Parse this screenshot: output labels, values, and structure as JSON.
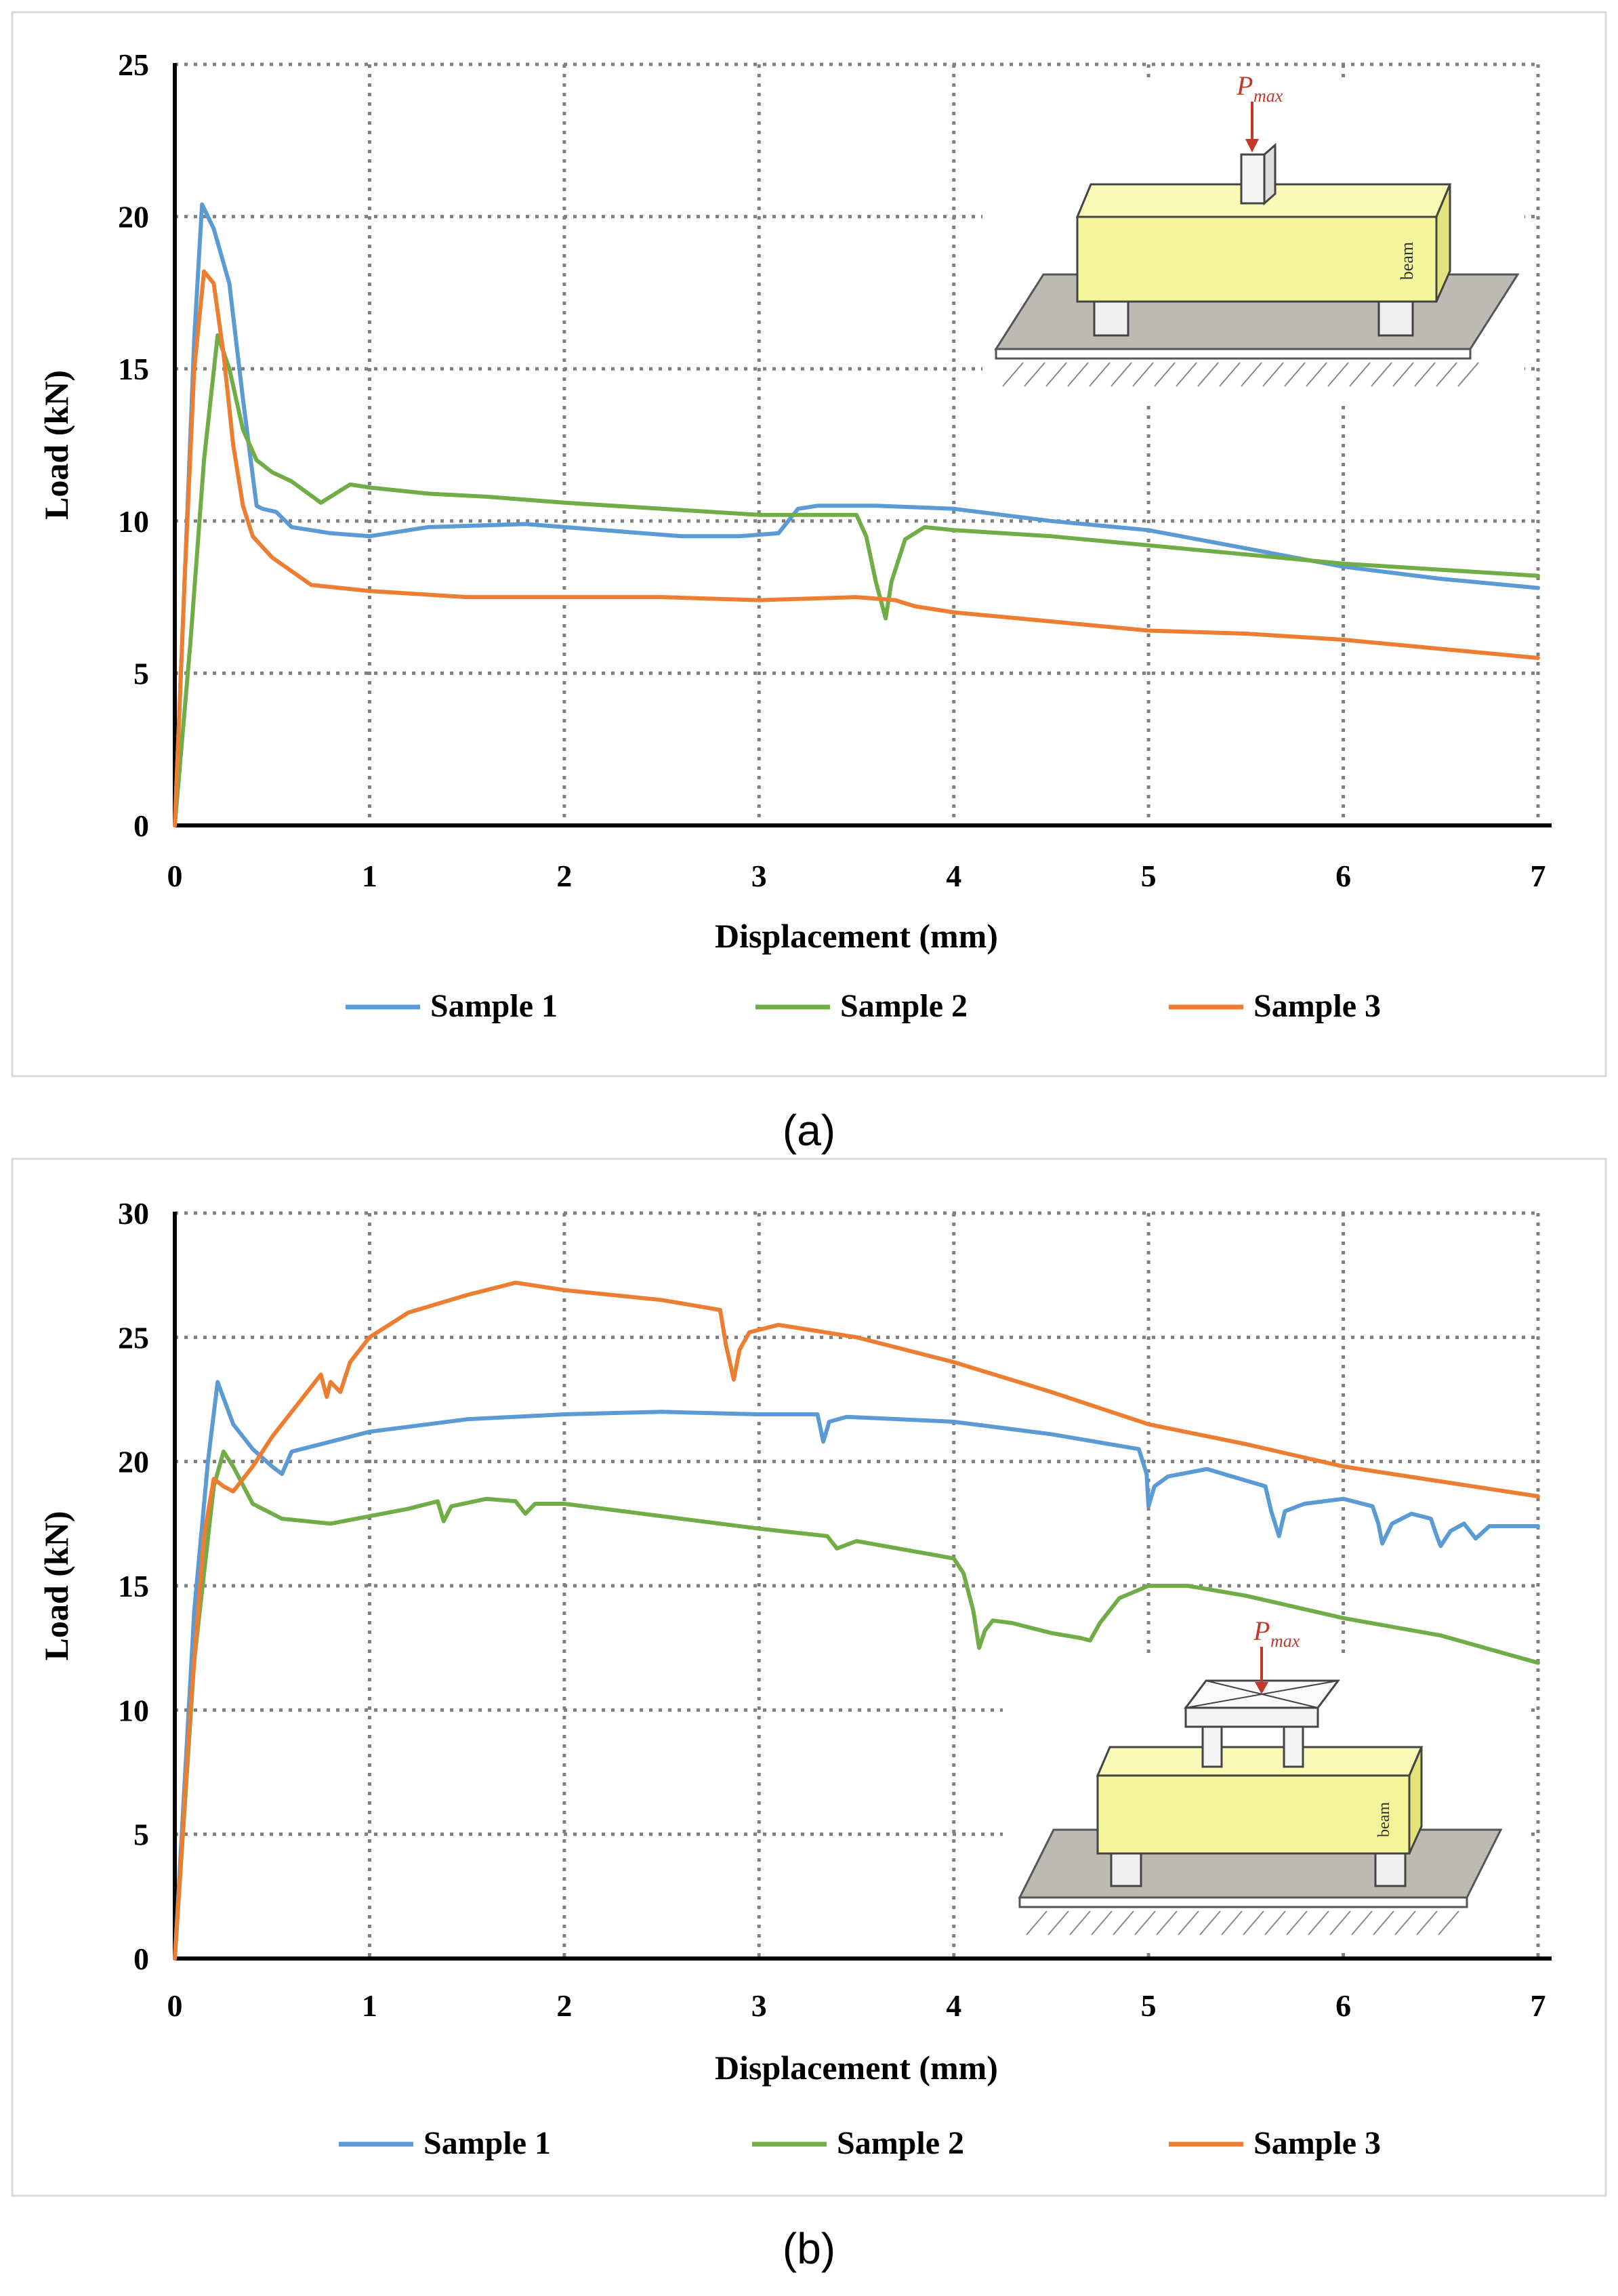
{
  "figure": {
    "panel_labels": [
      "(a)",
      "(b)"
    ]
  },
  "colors": {
    "Sample 1": "#5B9BD5",
    "Sample 2": "#70AD47",
    "Sample 3": "#ED7D31",
    "inset_beam": "#F4F49A",
    "inset_base": "#BDBAB4",
    "inset_load": "#C0392B"
  },
  "chart_data": [
    {
      "type": "line",
      "panel": "(a)",
      "xlabel": "Displacement (mm)",
      "ylabel": "Load (kN)",
      "xlim": [
        0,
        7
      ],
      "ylim": [
        0,
        25
      ],
      "xticks": [
        0,
        1,
        2,
        3,
        4,
        5,
        6,
        7
      ],
      "yticks": [
        0,
        5,
        10,
        15,
        20,
        25
      ],
      "grid": true,
      "legend": "bottom",
      "inset": {
        "load_label": "P",
        "load_subscript": "max",
        "beam_label": "beam",
        "setup": "three-point bending"
      },
      "series": [
        {
          "name": "Sample 1",
          "x": [
            0,
            0.05,
            0.1,
            0.14,
            0.2,
            0.28,
            0.35,
            0.42,
            0.45,
            0.52,
            0.6,
            0.8,
            1.0,
            1.3,
            1.8,
            2.2,
            2.6,
            2.9,
            3.1,
            3.2,
            3.3,
            3.6,
            4.0,
            4.5,
            5.0,
            5.5,
            6.0,
            6.5,
            7.0
          ],
          "y": [
            0,
            8,
            16,
            20.4,
            19.6,
            17.8,
            14,
            10.5,
            10.4,
            10.3,
            9.8,
            9.6,
            9.5,
            9.8,
            9.9,
            9.7,
            9.5,
            9.5,
            9.6,
            10.4,
            10.5,
            10.5,
            10.4,
            10.0,
            9.7,
            9.1,
            8.5,
            8.1,
            7.8
          ]
        },
        {
          "name": "Sample 2",
          "x": [
            0,
            0.08,
            0.15,
            0.22,
            0.28,
            0.35,
            0.42,
            0.5,
            0.6,
            0.75,
            0.9,
            1.0,
            1.3,
            1.6,
            2.0,
            2.5,
            3.0,
            3.5,
            3.55,
            3.6,
            3.65,
            3.68,
            3.75,
            3.85,
            4.0,
            4.5,
            5.0,
            5.5,
            6.0,
            6.5,
            7.0
          ],
          "y": [
            0,
            6,
            12,
            16.1,
            15,
            13,
            12,
            11.6,
            11.3,
            10.6,
            11.2,
            11.1,
            10.9,
            10.8,
            10.6,
            10.4,
            10.2,
            10.2,
            9.5,
            8.0,
            6.8,
            8.0,
            9.4,
            9.8,
            9.7,
            9.5,
            9.2,
            8.9,
            8.6,
            8.4,
            8.2
          ]
        },
        {
          "name": "Sample 3",
          "x": [
            0,
            0.05,
            0.1,
            0.15,
            0.2,
            0.25,
            0.3,
            0.35,
            0.4,
            0.5,
            0.7,
            1.0,
            1.5,
            2.0,
            2.5,
            3.0,
            3.5,
            3.7,
            3.8,
            4.0,
            4.5,
            5.0,
            5.5,
            6.0,
            6.5,
            7.0
          ],
          "y": [
            0,
            8,
            15,
            18.2,
            17.8,
            15.5,
            12.5,
            10.5,
            9.5,
            8.8,
            7.9,
            7.7,
            7.5,
            7.5,
            7.5,
            7.4,
            7.5,
            7.4,
            7.2,
            7.0,
            6.7,
            6.4,
            6.3,
            6.1,
            5.8,
            5.5
          ]
        }
      ]
    },
    {
      "type": "line",
      "panel": "(b)",
      "xlabel": "Displacement (mm)",
      "ylabel": "Load (kN)",
      "xlim": [
        0,
        7
      ],
      "ylim": [
        0,
        30
      ],
      "xticks": [
        0,
        1,
        2,
        3,
        4,
        5,
        6,
        7
      ],
      "yticks": [
        0,
        5,
        10,
        15,
        20,
        25,
        30
      ],
      "grid": true,
      "legend": "bottom",
      "inset": {
        "load_label": "P",
        "load_subscript": "max",
        "beam_label": "beam",
        "setup": "four-point bending"
      },
      "series": [
        {
          "name": "Sample 1",
          "x": [
            0,
            0.1,
            0.17,
            0.22,
            0.3,
            0.4,
            0.5,
            0.55,
            0.6,
            0.7,
            1.0,
            1.5,
            2.0,
            2.5,
            3.0,
            3.3,
            3.33,
            3.36,
            3.45,
            4.0,
            4.5,
            4.95,
            4.99,
            5.0,
            5.03,
            5.1,
            5.3,
            5.6,
            5.63,
            5.67,
            5.7,
            5.8,
            6.0,
            6.15,
            6.18,
            6.2,
            6.25,
            6.35,
            6.45,
            6.48,
            6.5,
            6.55,
            6.62,
            6.65,
            6.68,
            6.75,
            7.0
          ],
          "y": [
            0,
            14,
            20,
            23.2,
            21.5,
            20.5,
            19.8,
            19.5,
            20.4,
            20.6,
            21.2,
            21.7,
            21.9,
            22.0,
            21.9,
            21.9,
            20.8,
            21.6,
            21.8,
            21.6,
            21.1,
            20.5,
            19.5,
            18.2,
            19.0,
            19.4,
            19.7,
            19.0,
            18.0,
            17.0,
            18.0,
            18.3,
            18.5,
            18.2,
            17.5,
            16.7,
            17.5,
            17.9,
            17.7,
            17.0,
            16.6,
            17.2,
            17.5,
            17.2,
            16.9,
            17.4,
            17.4
          ]
        },
        {
          "name": "Sample 2",
          "x": [
            0,
            0.1,
            0.2,
            0.25,
            0.3,
            0.4,
            0.55,
            0.8,
            1.0,
            1.2,
            1.35,
            1.38,
            1.42,
            1.6,
            1.75,
            1.8,
            1.85,
            2.0,
            2.5,
            3.0,
            3.35,
            3.4,
            3.5,
            4.0,
            4.05,
            4.1,
            4.13,
            4.16,
            4.2,
            4.3,
            4.5,
            4.65,
            4.7,
            4.75,
            4.85,
            5.0,
            5.2,
            5.5,
            6.0,
            6.5,
            7.0
          ],
          "y": [
            0,
            12,
            19,
            20.4,
            19.8,
            18.3,
            17.7,
            17.5,
            17.8,
            18.1,
            18.4,
            17.6,
            18.2,
            18.5,
            18.4,
            17.9,
            18.3,
            18.3,
            17.8,
            17.3,
            17.0,
            16.5,
            16.8,
            16.1,
            15.5,
            14.0,
            12.5,
            13.2,
            13.6,
            13.5,
            13.1,
            12.9,
            12.8,
            13.5,
            14.5,
            15.0,
            15.0,
            14.6,
            13.7,
            13.0,
            11.9
          ]
        },
        {
          "name": "Sample 3",
          "x": [
            0,
            0.08,
            0.15,
            0.2,
            0.25,
            0.3,
            0.4,
            0.5,
            0.6,
            0.7,
            0.75,
            0.78,
            0.8,
            0.85,
            0.9,
            1.0,
            1.2,
            1.5,
            1.75,
            2.0,
            2.5,
            2.8,
            2.83,
            2.87,
            2.9,
            2.95,
            3.1,
            3.5,
            4.0,
            4.5,
            5.0,
            5.5,
            6.0,
            6.5,
            7.0
          ],
          "y": [
            0,
            10,
            17,
            19.3,
            19.0,
            18.8,
            19.8,
            21.0,
            22.0,
            23.0,
            23.5,
            22.6,
            23.2,
            22.8,
            24.0,
            25.0,
            26.0,
            26.7,
            27.2,
            26.9,
            26.5,
            26.1,
            24.7,
            23.3,
            24.5,
            25.2,
            25.5,
            25.0,
            24.0,
            22.8,
            21.5,
            20.7,
            19.8,
            19.2,
            18.6
          ]
        }
      ]
    }
  ]
}
